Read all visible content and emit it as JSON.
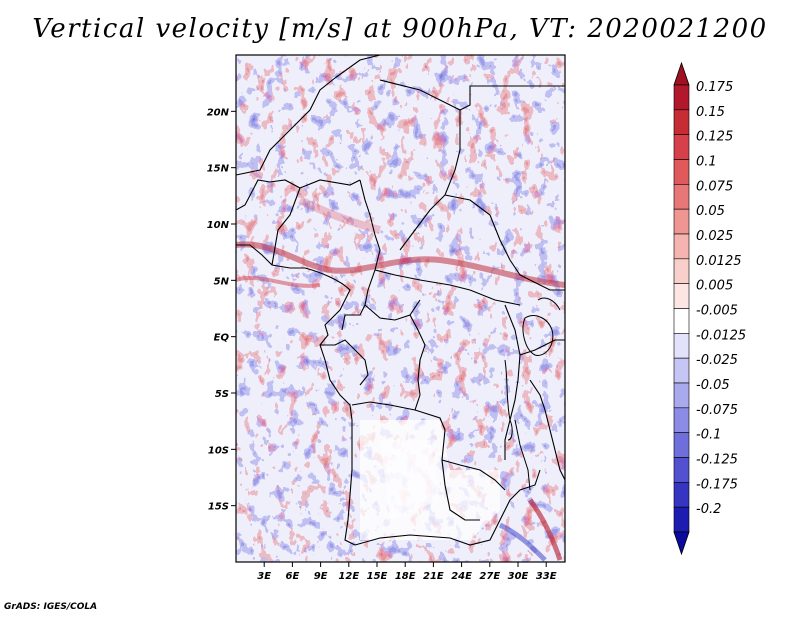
{
  "title": "Vertical velocity [m/s] at 900hPa, VT: 2020021200",
  "credit": "GrADS: IGES/COLA",
  "map": {
    "lon_range": [
      0,
      35
    ],
    "lat_range": [
      -20,
      25
    ],
    "lat_labels": [
      {
        "value": 20,
        "text": "20N"
      },
      {
        "value": 15,
        "text": "15N"
      },
      {
        "value": 10,
        "text": "10N"
      },
      {
        "value": 5,
        "text": "5N"
      },
      {
        "value": 0,
        "text": "EQ"
      },
      {
        "value": -5,
        "text": "5S"
      },
      {
        "value": -10,
        "text": "10S"
      },
      {
        "value": -15,
        "text": "15S"
      }
    ],
    "lon_labels": [
      {
        "value": 3,
        "text": "3E"
      },
      {
        "value": 6,
        "text": "6E"
      },
      {
        "value": 9,
        "text": "9E"
      },
      {
        "value": 12,
        "text": "12E"
      },
      {
        "value": 15,
        "text": "15E"
      },
      {
        "value": 18,
        "text": "18E"
      },
      {
        "value": 21,
        "text": "21E"
      },
      {
        "value": 24,
        "text": "24E"
      },
      {
        "value": 27,
        "text": "27E"
      },
      {
        "value": 30,
        "text": "30E"
      },
      {
        "value": 33,
        "text": "33E"
      }
    ]
  },
  "colorbar": {
    "levels": [
      {
        "label": "0.175",
        "color": "#b2182b"
      },
      {
        "label": "0.15",
        "color": "#c62c34"
      },
      {
        "label": "0.125",
        "color": "#d6404a"
      },
      {
        "label": "0.1",
        "color": "#e05a5c"
      },
      {
        "label": "0.075",
        "color": "#e87878"
      },
      {
        "label": "0.05",
        "color": "#ef9693"
      },
      {
        "label": "0.025",
        "color": "#f5b4b0"
      },
      {
        "label": "0.0125",
        "color": "#f9cfcc"
      },
      {
        "label": "0.005",
        "color": "#fce6e4"
      },
      {
        "label": "-0.005",
        "color": "#ffffff"
      },
      {
        "label": "-0.0125",
        "color": "#e2e2fb"
      },
      {
        "label": "-0.025",
        "color": "#c6c6f5"
      },
      {
        "label": "-0.05",
        "color": "#a9a9ee"
      },
      {
        "label": "-0.075",
        "color": "#8c8ce6"
      },
      {
        "label": "-0.1",
        "color": "#6f6fdc"
      },
      {
        "label": "-0.125",
        "color": "#5252d0"
      },
      {
        "label": "-0.175",
        "color": "#3535c2"
      },
      {
        "label": "-0.2",
        "color": "#1c1cb0"
      }
    ],
    "under_color": "#0a0aa0",
    "over_color": "#a01020"
  }
}
